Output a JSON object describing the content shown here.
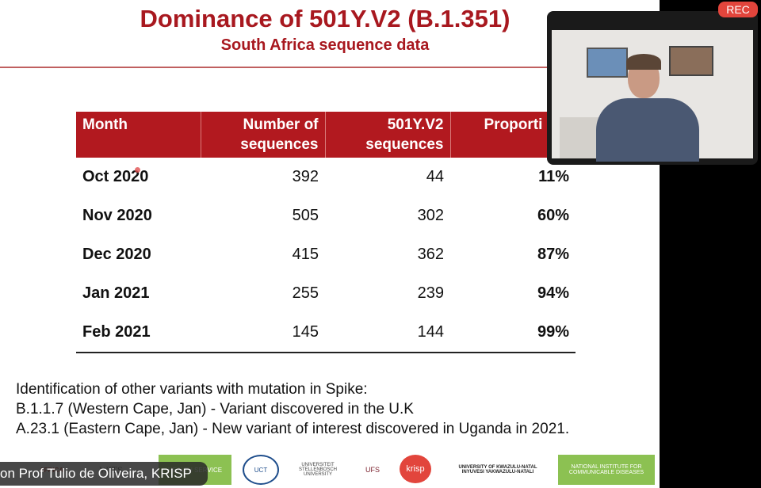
{
  "slide": {
    "title": "Dominance of 501Y.V2 (B.1.351)",
    "subtitle": "South Africa sequence data",
    "table": {
      "headers": [
        "Month",
        "Number of sequences",
        "501Y.V2 sequences",
        "Proporti"
      ],
      "rows": [
        {
          "month": "Oct 2020",
          "sequences": "392",
          "variant": "44",
          "proportion": "11%"
        },
        {
          "month": "Nov 2020",
          "sequences": "505",
          "variant": "302",
          "proportion": "60%"
        },
        {
          "month": "Dec 2020",
          "sequences": "415",
          "variant": "362",
          "proportion": "87%"
        },
        {
          "month": "Jan 2021",
          "sequences": "255",
          "variant": "239",
          "proportion": "94%"
        },
        {
          "month": "Feb 2021",
          "sequences": "145",
          "variant": "144",
          "proportion": "99%"
        }
      ]
    },
    "notes": [
      "Identification of other variants with mutation in Spike:",
      "B.1.1.7 (Western Cape, Jan) - Variant discovered in the U.K",
      "A.23.1  (Eastern Cape, Jan)  - New variant of interest discovered in Uganda in 2021."
    ],
    "logos": [
      "AFRICA",
      "WITS",
      "HEALTH SERVICE",
      "UCT",
      "UNIVERSITEIT STELLENBOSCH UNIVERSITY",
      "UFS",
      "krisp",
      "UNIVERSITY OF KWAZULU-NATAL INYUVESI YAKWAZULU-NATALI",
      "NATIONAL INSTITUTE FOR COMMUNICABLE DISEASES"
    ]
  },
  "meeting": {
    "rec_label": "REC",
    "caption": "on Prof Tulio de Oliveira, KRISP"
  },
  "colors": {
    "brand_red": "#b2191f",
    "rec_red": "#e2453c"
  }
}
